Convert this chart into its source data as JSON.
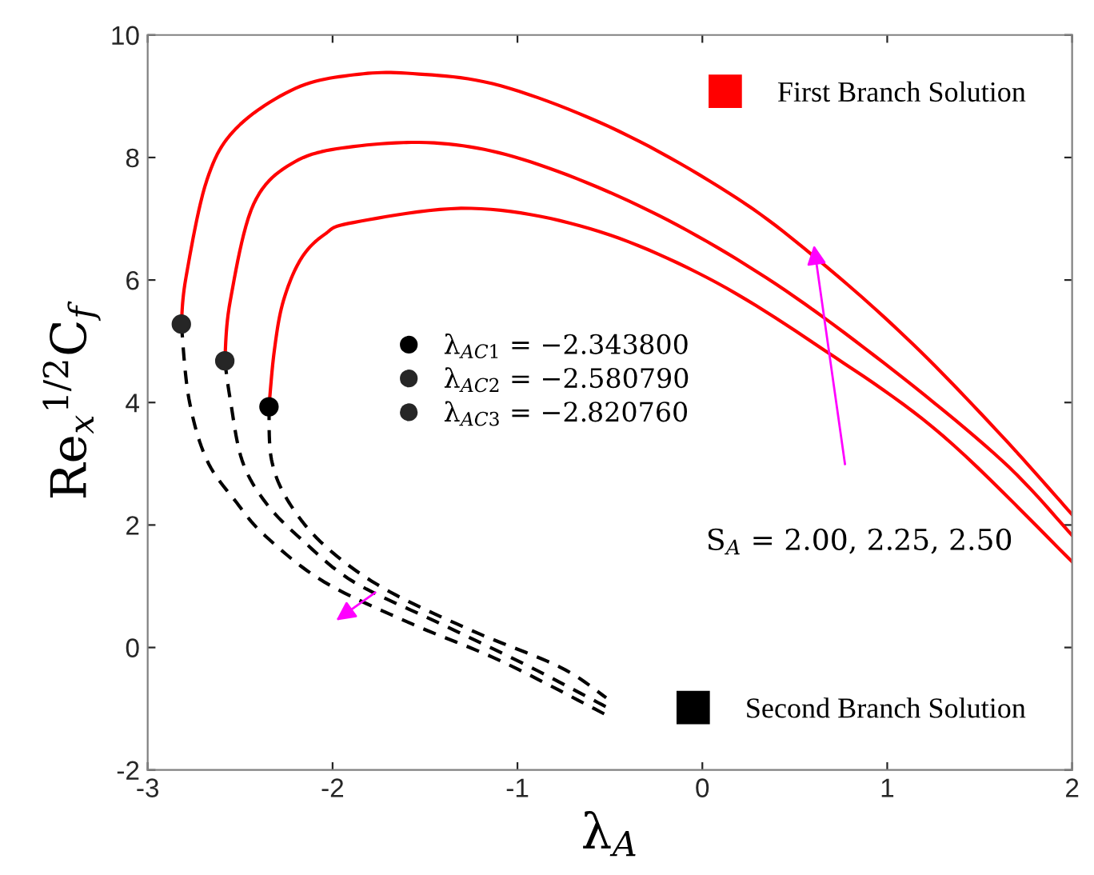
{
  "chart_data": {
    "type": "line",
    "xlabel": "λ$_{A}$",
    "ylabel": "Re$_{x}$$^{1/2}$C$_{f}$",
    "xlim": [
      -3,
      2
    ],
    "ylim": [
      -2,
      10
    ],
    "xticks": [
      -3,
      -2,
      -1,
      0,
      1,
      2
    ],
    "yticks": [
      -2,
      0,
      2,
      4,
      6,
      8,
      10
    ],
    "grid": false,
    "legend": "top right",
    "series": [
      {
        "name": "First Branch Solution",
        "color": "#ff0000",
        "line_style": "solid",
        "x": [
          -2.818,
          -2.793,
          -2.68,
          -2.52,
          -2.2,
          -1.885,
          -1.567,
          -1.09,
          -0.452,
          0.185,
          0.662,
          1.14,
          1.618,
          2.0
        ],
        "values": [
          5.28,
          6.04,
          7.63,
          8.48,
          9.13,
          9.35,
          9.37,
          9.17,
          8.43,
          7.34,
          6.24,
          4.95,
          3.46,
          2.17
        ]
      },
      {
        "color": "#ff0000",
        "line_style": "solid",
        "x": [
          -2.583,
          -2.554,
          -2.427,
          -2.204,
          -1.885,
          -1.41,
          -0.93,
          -0.293,
          0.344,
          0.98,
          1.618,
          2.0
        ],
        "values": [
          4.68,
          5.65,
          7.24,
          7.93,
          8.18,
          8.23,
          7.93,
          7.14,
          6.04,
          4.65,
          3.06,
          1.83
        ]
      },
      {
        "color": "#ff0000",
        "line_style": "solid",
        "x": [
          -2.344,
          -2.315,
          -2.267,
          -2.172,
          -2.045,
          -1.885,
          -1.25,
          -0.61,
          0.025,
          0.662,
          1.3,
          2.0
        ],
        "values": [
          3.93,
          4.85,
          5.65,
          6.34,
          6.74,
          6.94,
          7.17,
          6.84,
          6.04,
          4.85,
          3.46,
          1.4
        ]
      },
      {
        "name": "Second Branch Solution",
        "color": "#000000",
        "line_style": "dashed",
        "x": [
          -2.818,
          -2.777,
          -2.68,
          -2.52,
          -2.363,
          -2.045,
          -1.567,
          -1.09,
          -0.52
        ],
        "values": [
          5.28,
          4.06,
          3.06,
          2.37,
          1.82,
          1.07,
          0.38,
          -0.22,
          -1.1
        ]
      },
      {
        "color": "#000000",
        "line_style": "dashed",
        "x": [
          -2.583,
          -2.554,
          -2.49,
          -2.363,
          -2.17,
          -1.885,
          -1.41,
          -0.93,
          -0.52
        ],
        "values": [
          4.68,
          4.06,
          3.06,
          2.37,
          1.77,
          1.07,
          0.38,
          -0.32,
          -0.97
        ]
      },
      {
        "color": "#000000",
        "line_style": "dashed",
        "x": [
          -2.344,
          -2.33,
          -2.236,
          -2.045,
          -1.726,
          -1.25,
          -0.77,
          -0.52
        ],
        "values": [
          3.93,
          3.06,
          2.37,
          1.67,
          0.97,
          0.28,
          -0.32,
          -0.82
        ]
      },
      {
        "type": "scatter",
        "name": "λ$_{AC1}$ = −2.343800",
        "color": "#000000",
        "marker": "circle",
        "x": [
          -2.344
        ],
        "values": [
          3.93
        ]
      },
      {
        "type": "scatter",
        "name": "λ$_{AC2}$ = −2.580790",
        "color": "#262626",
        "marker": "circle",
        "x": [
          -2.583
        ],
        "values": [
          4.68
        ]
      },
      {
        "type": "scatter",
        "name": "λ$_{AC3}$ = −2.820760",
        "color": "#262626",
        "marker": "circle",
        "x": [
          -2.818
        ],
        "values": [
          5.28
        ]
      }
    ],
    "annotations": [
      "S$_{A}$ = 2.00, 2.25, 2.50"
    ]
  }
}
